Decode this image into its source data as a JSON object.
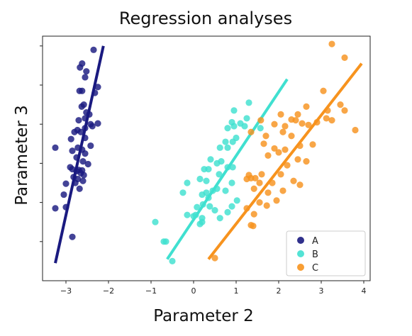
{
  "chart_data": {
    "type": "scatter",
    "title": "Regression analyses",
    "xlabel": "Parameter 2",
    "ylabel": "Parameter 3",
    "xlim": [
      -3.55,
      4.15
    ],
    "ylim": [
      -0.5,
      5.75
    ],
    "xticks": [
      -3,
      -2,
      -1,
      0,
      1,
      2,
      3,
      4
    ],
    "yticks": [
      0.5,
      1.5,
      2.5,
      3.5,
      4.5,
      5.5
    ],
    "ytick_labels_shown": false,
    "grid": false,
    "legend": {
      "position": "bottom-right"
    },
    "series": [
      {
        "name": "A",
        "color": "#1a1a80",
        "points": [
          [
            -2.35,
            5.4
          ],
          [
            -2.62,
            5.05
          ],
          [
            -2.67,
            4.95
          ],
          [
            -2.52,
            4.85
          ],
          [
            -2.55,
            4.7
          ],
          [
            -2.62,
            4.35
          ],
          [
            -2.68,
            4.35
          ],
          [
            -2.25,
            4.45
          ],
          [
            -2.32,
            4.3
          ],
          [
            -2.58,
            4.0
          ],
          [
            -2.63,
            3.95
          ],
          [
            -2.52,
            3.8
          ],
          [
            -2.45,
            3.75
          ],
          [
            -2.7,
            3.6
          ],
          [
            -2.55,
            3.65
          ],
          [
            -2.42,
            3.5
          ],
          [
            -2.38,
            3.45
          ],
          [
            -2.25,
            3.52
          ],
          [
            -2.55,
            3.4
          ],
          [
            -2.73,
            3.35
          ],
          [
            -2.8,
            3.3
          ],
          [
            -2.65,
            3.3
          ],
          [
            -2.88,
            3.12
          ],
          [
            -2.55,
            3.15
          ],
          [
            -3.25,
            2.9
          ],
          [
            -2.85,
            2.82
          ],
          [
            -2.72,
            2.9
          ],
          [
            -2.62,
            2.85
          ],
          [
            -2.42,
            2.95
          ],
          [
            -2.55,
            2.75
          ],
          [
            -2.75,
            2.65
          ],
          [
            -2.6,
            2.55
          ],
          [
            -2.48,
            2.48
          ],
          [
            -2.9,
            2.4
          ],
          [
            -2.85,
            2.35
          ],
          [
            -2.7,
            2.33
          ],
          [
            -2.75,
            2.3
          ],
          [
            -2.62,
            2.32
          ],
          [
            -2.82,
            2.15
          ],
          [
            -2.65,
            2.25
          ],
          [
            -2.58,
            2.2
          ],
          [
            -2.72,
            2.1
          ],
          [
            -2.6,
            2.05
          ],
          [
            -3.0,
            1.98
          ],
          [
            -2.78,
            2.0
          ],
          [
            -2.68,
            1.85
          ],
          [
            -3.05,
            1.7
          ],
          [
            -3.25,
            1.35
          ],
          [
            -3.0,
            1.38
          ],
          [
            -2.85,
            0.62
          ]
        ],
        "line": [
          [
            -3.25,
            -0.05
          ],
          [
            -2.12,
            5.5
          ]
        ]
      },
      {
        "name": "B",
        "color": "#40e0d0",
        "points": [
          [
            1.3,
            4.05
          ],
          [
            0.95,
            3.85
          ],
          [
            1.25,
            3.65
          ],
          [
            0.9,
            3.55
          ],
          [
            0.95,
            3.45
          ],
          [
            1.1,
            3.52
          ],
          [
            0.8,
            3.4
          ],
          [
            1.2,
            3.45
          ],
          [
            1.57,
            3.4
          ],
          [
            1.0,
            3.15
          ],
          [
            0.75,
            3.05
          ],
          [
            0.92,
            3.05
          ],
          [
            0.8,
            2.9
          ],
          [
            0.62,
            2.9
          ],
          [
            0.4,
            2.6
          ],
          [
            0.65,
            2.55
          ],
          [
            0.55,
            2.5
          ],
          [
            0.8,
            2.4
          ],
          [
            0.92,
            2.4
          ],
          [
            0.35,
            2.35
          ],
          [
            0.25,
            2.35
          ],
          [
            0.6,
            2.22
          ],
          [
            0.15,
            2.1
          ],
          [
            0.3,
            2.05
          ],
          [
            -0.15,
            2.0
          ],
          [
            0.9,
            2.0
          ],
          [
            0.55,
            1.85
          ],
          [
            0.75,
            1.8
          ],
          [
            0.45,
            1.8
          ],
          [
            -0.25,
            1.75
          ],
          [
            0.3,
            1.75
          ],
          [
            0.2,
            1.7
          ],
          [
            0.35,
            1.62
          ],
          [
            1.02,
            1.55
          ],
          [
            0.22,
            1.45
          ],
          [
            0.9,
            1.4
          ],
          [
            0.38,
            1.4
          ],
          [
            0.08,
            1.38
          ],
          [
            0.5,
            1.3
          ],
          [
            0.8,
            1.25
          ],
          [
            -0.15,
            1.18
          ],
          [
            0.05,
            1.18
          ],
          [
            0.0,
            1.15
          ],
          [
            0.2,
            1.1
          ],
          [
            0.62,
            1.1
          ],
          [
            -0.9,
            1.0
          ],
          [
            0.2,
            1.0
          ],
          [
            0.15,
            0.95
          ],
          [
            -0.65,
            0.5
          ],
          [
            -0.7,
            0.5
          ],
          [
            -0.5,
            0.0
          ]
        ],
        "line": [
          [
            -0.62,
            0.05
          ],
          [
            2.2,
            4.65
          ]
        ]
      },
      {
        "name": "C",
        "color": "#f7931e",
        "points": [
          [
            3.25,
            5.55
          ],
          [
            3.55,
            5.2
          ],
          [
            3.05,
            4.35
          ],
          [
            3.45,
            4.0
          ],
          [
            2.65,
            3.95
          ],
          [
            3.15,
            3.85
          ],
          [
            3.55,
            3.85
          ],
          [
            2.05,
            3.75
          ],
          [
            2.45,
            3.75
          ],
          [
            3.12,
            3.65
          ],
          [
            2.3,
            3.62
          ],
          [
            1.58,
            3.6
          ],
          [
            2.4,
            3.6
          ],
          [
            2.55,
            3.52
          ],
          [
            3.25,
            3.6
          ],
          [
            2.9,
            3.55
          ],
          [
            1.9,
            3.5
          ],
          [
            2.15,
            3.45
          ],
          [
            2.7,
            3.48
          ],
          [
            2.1,
            3.3
          ],
          [
            1.35,
            3.3
          ],
          [
            1.7,
            3.2
          ],
          [
            2.3,
            3.2
          ],
          [
            1.65,
            3.0
          ],
          [
            2.5,
            2.95
          ],
          [
            2.8,
            2.98
          ],
          [
            3.8,
            3.35
          ],
          [
            1.9,
            2.88
          ],
          [
            2.15,
            2.85
          ],
          [
            2.0,
            2.78
          ],
          [
            1.75,
            2.7
          ],
          [
            2.45,
            2.6
          ],
          [
            2.65,
            2.55
          ],
          [
            2.2,
            2.45
          ],
          [
            1.3,
            2.2
          ],
          [
            1.6,
            2.22
          ],
          [
            1.35,
            2.12
          ],
          [
            1.45,
            2.12
          ],
          [
            2.05,
            2.22
          ],
          [
            1.25,
            2.1
          ],
          [
            1.55,
            2.0
          ],
          [
            1.85,
            2.0
          ],
          [
            2.35,
            2.05
          ],
          [
            2.5,
            1.95
          ],
          [
            1.42,
            1.85
          ],
          [
            1.75,
            1.75
          ],
          [
            2.1,
            1.8
          ],
          [
            1.55,
            1.5
          ],
          [
            1.25,
            1.35
          ],
          [
            1.95,
            1.55
          ],
          [
            1.72,
            1.42
          ],
          [
            1.42,
            1.2
          ],
          [
            1.4,
            0.9
          ],
          [
            1.35,
            0.92
          ],
          [
            0.5,
            0.08
          ]
        ],
        "line": [
          [
            0.35,
            0.05
          ],
          [
            3.95,
            5.05
          ]
        ]
      }
    ]
  }
}
